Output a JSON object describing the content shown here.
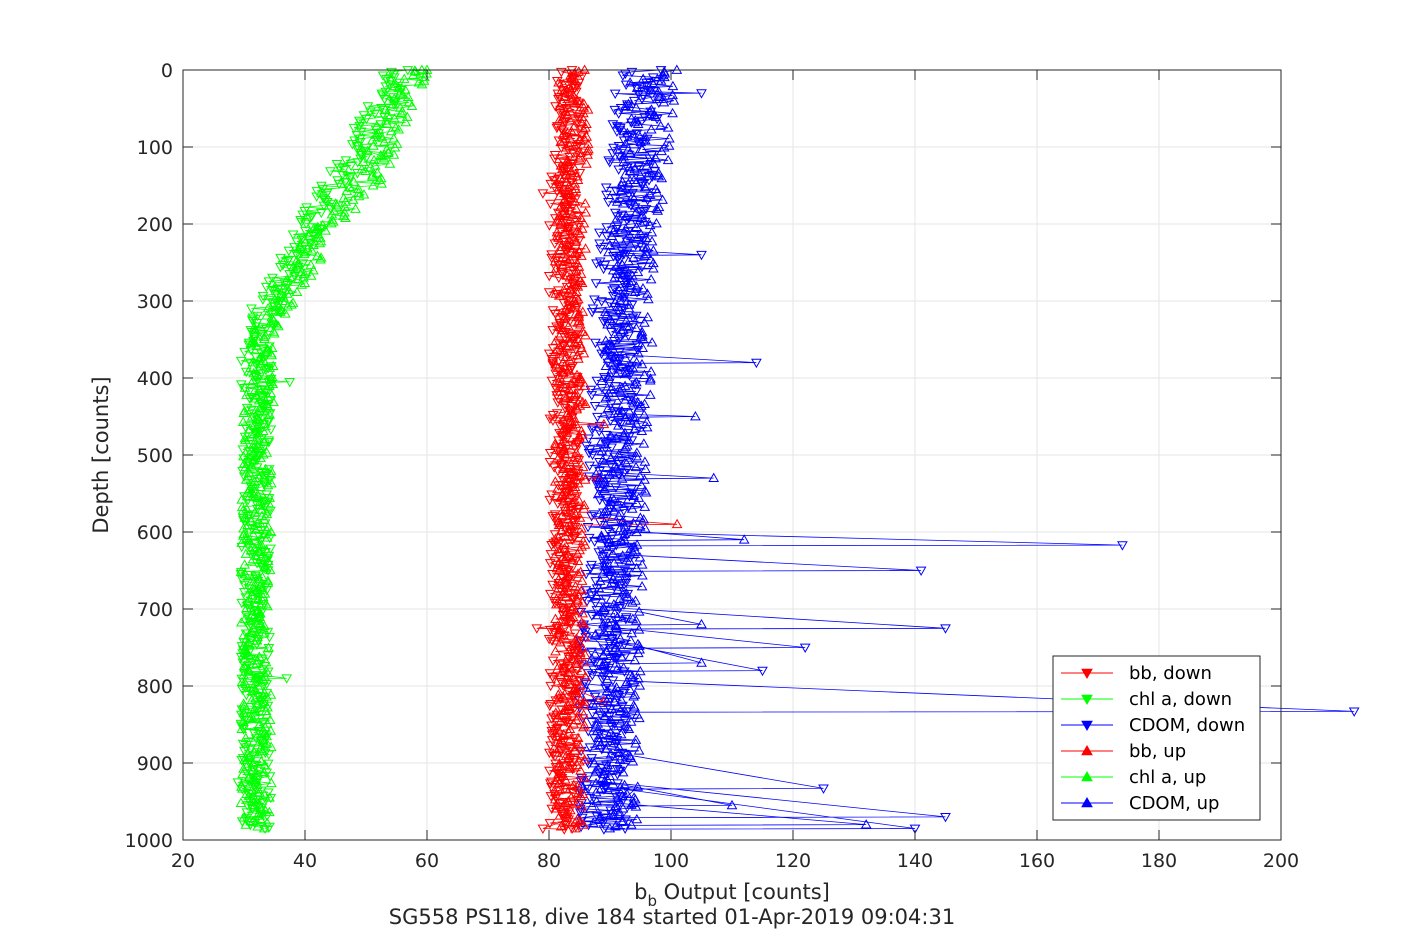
{
  "chart_data": {
    "type": "line",
    "title": "SG558 PS118, dive 184 started 01-Apr-2019 09:04:31",
    "xlabel_main": "b",
    "xlabel_sub": "b",
    "xlabel_rest": " Output [counts]",
    "ylabel": "Depth [counts]",
    "xlim": [
      20,
      200
    ],
    "ylim": [
      0,
      1000
    ],
    "y_reversed": true,
    "xticks": [
      20,
      40,
      60,
      80,
      100,
      120,
      140,
      160,
      180,
      200
    ],
    "yticks": [
      0,
      100,
      200,
      300,
      400,
      500,
      600,
      700,
      800,
      900,
      1000
    ],
    "grid": true,
    "legend_position": "bottom-right",
    "colors": {
      "bb": "#ff0000",
      "chl": "#00ff00",
      "cdom": "#0000ff",
      "axis": "#262626",
      "grid": "#e6e6e6"
    },
    "depth_range": [
      0,
      985
    ],
    "series": [
      {
        "name": "bb, down",
        "color": "#ff0000",
        "marker": "triangle-down",
        "profile": [
          [
            0,
            83
          ],
          [
            100,
            83
          ],
          [
            200,
            82.5
          ],
          [
            400,
            82.5
          ],
          [
            600,
            82.5
          ],
          [
            800,
            82.5
          ],
          [
            985,
            82.5
          ]
        ],
        "spread": 2.5,
        "outliers": [
          [
            160,
            79
          ],
          [
            725,
            78
          ],
          [
            985,
            79
          ]
        ]
      },
      {
        "name": "chl a, down",
        "color": "#00ff00",
        "marker": "triangle-down",
        "profile": [
          [
            0,
            55
          ],
          [
            50,
            52
          ],
          [
            100,
            49
          ],
          [
            150,
            45
          ],
          [
            200,
            41
          ],
          [
            250,
            38
          ],
          [
            300,
            34
          ],
          [
            350,
            32
          ],
          [
            500,
            32
          ],
          [
            700,
            32
          ],
          [
            985,
            32
          ]
        ],
        "spread": 2.5,
        "outliers": [
          [
            405,
            37.5
          ],
          [
            925,
            29
          ],
          [
            790,
            37
          ]
        ]
      },
      {
        "name": "CDOM, down",
        "color": "#0000ff",
        "marker": "triangle-down",
        "profile": [
          [
            0,
            95
          ],
          [
            100,
            94
          ],
          [
            200,
            92
          ],
          [
            300,
            91
          ],
          [
            400,
            91
          ],
          [
            500,
            90
          ],
          [
            600,
            90
          ],
          [
            700,
            89
          ],
          [
            800,
            89
          ],
          [
            985,
            89
          ]
        ],
        "spread": 4,
        "outliers": [
          [
            30,
            105
          ],
          [
            240,
            105
          ],
          [
            380,
            114
          ],
          [
            617,
            174
          ],
          [
            650,
            141
          ],
          [
            725,
            145
          ],
          [
            750,
            122
          ],
          [
            780,
            115
          ],
          [
            833,
            212
          ],
          [
            933,
            125
          ],
          [
            970,
            145
          ],
          [
            985,
            140
          ]
        ]
      },
      {
        "name": "bb, up",
        "color": "#ff0000",
        "marker": "triangle-up",
        "profile": [
          [
            0,
            84
          ],
          [
            100,
            84
          ],
          [
            200,
            83.5
          ],
          [
            400,
            83.5
          ],
          [
            600,
            83.5
          ],
          [
            800,
            83.5
          ],
          [
            985,
            83.5
          ]
        ],
        "spread": 2.5,
        "outliers": [
          [
            460,
            89
          ],
          [
            530,
            88
          ],
          [
            590,
            101
          ],
          [
            820,
            89
          ]
        ]
      },
      {
        "name": "chl a, up",
        "color": "#00ff00",
        "marker": "triangle-up",
        "profile": [
          [
            0,
            58
          ],
          [
            50,
            55
          ],
          [
            100,
            53
          ],
          [
            150,
            50
          ],
          [
            200,
            44
          ],
          [
            250,
            40
          ],
          [
            300,
            36
          ],
          [
            350,
            33
          ],
          [
            500,
            32
          ],
          [
            700,
            32
          ],
          [
            985,
            32
          ]
        ],
        "spread": 2.5,
        "outliers": [
          [
            0,
            60
          ],
          [
            110,
            53
          ]
        ]
      },
      {
        "name": "CDOM, up",
        "color": "#0000ff",
        "marker": "triangle-up",
        "profile": [
          [
            0,
            97
          ],
          [
            100,
            96
          ],
          [
            200,
            94
          ],
          [
            300,
            93
          ],
          [
            400,
            93
          ],
          [
            500,
            92
          ],
          [
            600,
            92
          ],
          [
            700,
            91
          ],
          [
            800,
            91
          ],
          [
            985,
            91
          ]
        ],
        "spread": 4,
        "outliers": [
          [
            450,
            104
          ],
          [
            530,
            107
          ],
          [
            610,
            112
          ],
          [
            720,
            105
          ],
          [
            770,
            105
          ],
          [
            955,
            110
          ],
          [
            980,
            132
          ]
        ]
      }
    ]
  }
}
